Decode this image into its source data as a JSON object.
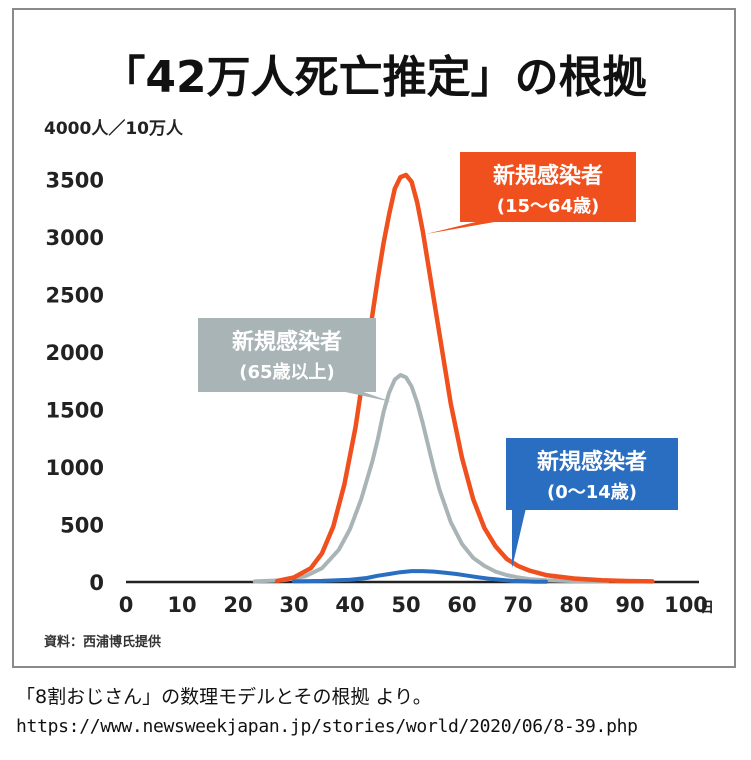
{
  "caption": {
    "line1": "「8割おじさん」の数理モデルとその根拠 より。",
    "url": "https://www.newsweekjapan.jp/stories/world/2020/06/8-39.php"
  },
  "chart_data": {
    "type": "line",
    "title": "「42万人死亡推定」の根拠",
    "ylabel": "4000人／10万人",
    "xlabel_unit": "日",
    "source": "資料：西浦博氏提供",
    "xlim": [
      0,
      100
    ],
    "ylim": [
      0,
      4000
    ],
    "x_ticks": [
      0,
      10,
      20,
      30,
      40,
      50,
      60,
      70,
      80,
      90,
      100
    ],
    "x_tick_labels": [
      "0",
      "10",
      "20",
      "30",
      "40",
      "50",
      "60",
      "70",
      "80",
      "90",
      "100"
    ],
    "y_ticks": [
      0,
      500,
      1000,
      1500,
      2000,
      2500,
      3000,
      3500
    ],
    "y_tick_labels": [
      "0",
      "500",
      "1000",
      "1500",
      "2000",
      "2500",
      "3000",
      "3500"
    ],
    "grid": false,
    "series": [
      {
        "name": "新規感染者（15〜64歳）",
        "label_line1": "新規感染者",
        "label_line2": "(15〜64歳)",
        "color": "#f0501e",
        "x": [
          27,
          30,
          33,
          35,
          37,
          39,
          41,
          43,
          45,
          46,
          47,
          48,
          49,
          50,
          51,
          52,
          53,
          54,
          55,
          56,
          57,
          58,
          60,
          62,
          64,
          66,
          68,
          70,
          72,
          75,
          80,
          85,
          90,
          94
        ],
        "y": [
          10,
          40,
          120,
          250,
          480,
          850,
          1350,
          2000,
          2650,
          2950,
          3200,
          3420,
          3520,
          3540,
          3480,
          3300,
          3050,
          2750,
          2450,
          2150,
          1850,
          1550,
          1080,
          720,
          470,
          310,
          200,
          140,
          100,
          60,
          30,
          15,
          8,
          5
        ]
      },
      {
        "name": "新規感染者（65歳以上）",
        "label_line1": "新規感染者",
        "label_line2": "(65歳以上)",
        "color": "#a9b4b6",
        "x": [
          23,
          28,
          32,
          35,
          38,
          40,
          42,
          44,
          45,
          46,
          47,
          48,
          49,
          50,
          51,
          52,
          53,
          54,
          55,
          56,
          58,
          60,
          62,
          64,
          66,
          68,
          70,
          72,
          75,
          80,
          86
        ],
        "y": [
          5,
          15,
          50,
          120,
          280,
          460,
          720,
          1050,
          1250,
          1480,
          1650,
          1760,
          1800,
          1780,
          1700,
          1560,
          1380,
          1180,
          980,
          800,
          520,
          330,
          210,
          140,
          90,
          60,
          40,
          25,
          15,
          8,
          5
        ]
      },
      {
        "name": "新規感染者（0〜14歳）",
        "label_line1": "新規感染者",
        "label_line2": "(0〜14歳)",
        "color": "#2a6ec1",
        "x": [
          30,
          35,
          40,
          43,
          45,
          47,
          49,
          51,
          53,
          55,
          57,
          59,
          61,
          63,
          65,
          67,
          69,
          71,
          73,
          75
        ],
        "y": [
          5,
          10,
          20,
          35,
          55,
          70,
          85,
          95,
          95,
          90,
          80,
          70,
          55,
          40,
          28,
          18,
          10,
          6,
          3,
          2
        ]
      }
    ],
    "colors": {
      "axis": "#222222",
      "title": "#111111"
    }
  }
}
